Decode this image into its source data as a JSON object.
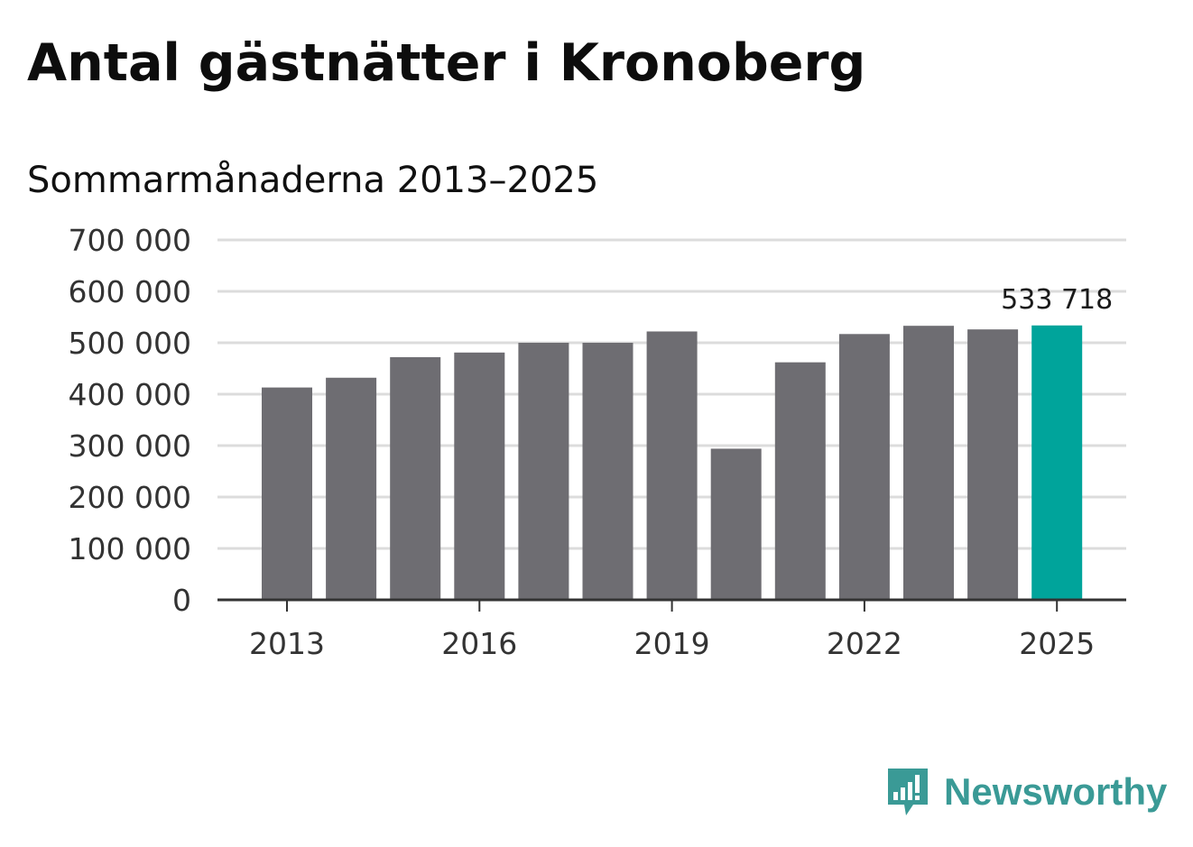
{
  "header": {
    "title": "Antal gästnätter i Kronoberg",
    "subtitle": "Sommarmånaderna 2013–2025"
  },
  "chart_data": {
    "type": "bar",
    "categories": [
      "2013",
      "2014",
      "2015",
      "2016",
      "2017",
      "2018",
      "2019",
      "2020",
      "2021",
      "2022",
      "2023",
      "2024",
      "2025"
    ],
    "values": [
      413000,
      432000,
      472000,
      481000,
      500000,
      500000,
      522000,
      294000,
      462000,
      517000,
      533000,
      526000,
      533718
    ],
    "ylim": [
      0,
      700000
    ],
    "yticks": [
      0,
      100000,
      200000,
      300000,
      400000,
      500000,
      600000,
      700000
    ],
    "ytick_labels": [
      "0",
      "100 000",
      "200 000",
      "300 000",
      "400 000",
      "500 000",
      "600 000",
      "700 000"
    ],
    "xtick_labels": [
      "2013",
      "2016",
      "2019",
      "2022",
      "2025"
    ],
    "grid": true,
    "colors": {
      "bar": "#6e6d72",
      "highlight": "#00a49b",
      "grid": "#dcdcdc",
      "axis": "#333333"
    },
    "highlight_index": 12,
    "annotation": {
      "index": 12,
      "label": "533 718"
    }
  },
  "branding": {
    "name": "Newsworthy",
    "icon": "newsworthy-logo-icon",
    "color": "#3a9a96"
  }
}
